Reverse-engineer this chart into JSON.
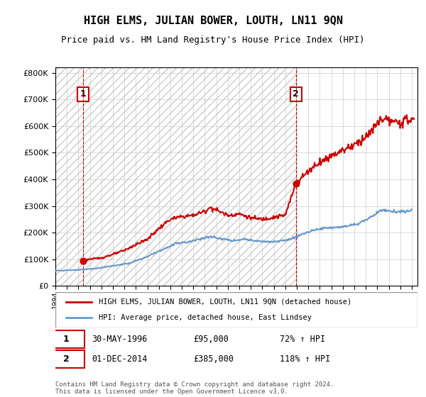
{
  "title": "HIGH ELMS, JULIAN BOWER, LOUTH, LN11 9QN",
  "subtitle": "Price paid vs. HM Land Registry's House Price Index (HPI)",
  "legend_line1": "HIGH ELMS, JULIAN BOWER, LOUTH, LN11 9QN (detached house)",
  "legend_line2": "HPI: Average price, detached house, East Lindsey",
  "sale1_label": "1",
  "sale1_date": "30-MAY-1996",
  "sale1_price": "£95,000",
  "sale1_hpi": "72% ↑ HPI",
  "sale1_year": 1996.41,
  "sale1_value": 95000,
  "sale2_label": "2",
  "sale2_date": "01-DEC-2014",
  "sale2_price": "£385,000",
  "sale2_hpi": "118% ↑ HPI",
  "sale2_year": 2014.92,
  "sale2_value": 385000,
  "property_color": "#cc0000",
  "hpi_color": "#6699cc",
  "hpi_shading_color": "#ddddff",
  "background_hatch_color": "#e8e8e8",
  "ylim": [
    0,
    820000
  ],
  "yticks": [
    0,
    100000,
    200000,
    300000,
    400000,
    500000,
    600000,
    700000,
    800000
  ],
  "xlim_start": 1994.0,
  "xlim_end": 2025.5,
  "footer": "Contains HM Land Registry data © Crown copyright and database right 2024.\nThis data is licensed under the Open Government Licence v3.0.",
  "sale1_vline_x": 1996.41,
  "sale2_vline_x": 2014.92
}
